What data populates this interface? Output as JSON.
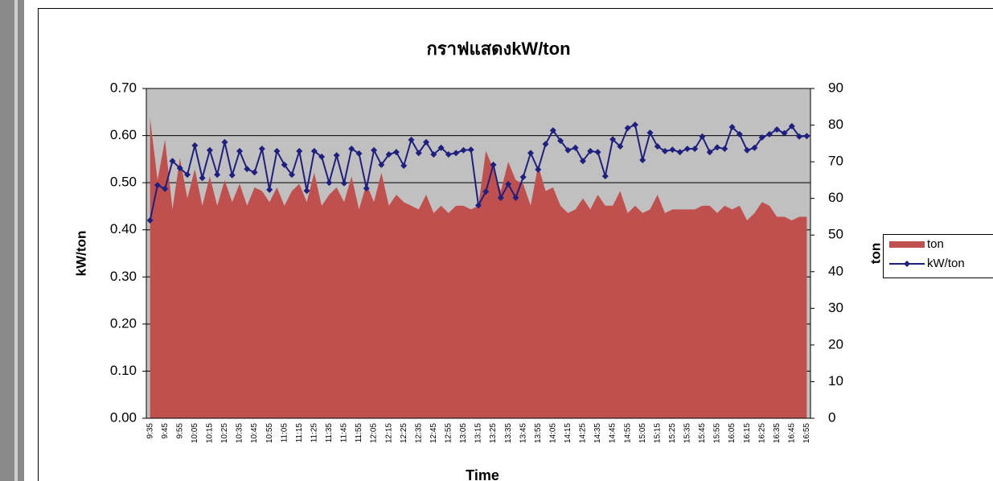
{
  "chart_data": {
    "type": "combo",
    "title": "กราฟแสดงkW/ton",
    "x_label": "Time",
    "y_label": "kW/ton",
    "y2_label": "ton",
    "categories": [
      "9:35",
      null,
      "9:45",
      null,
      "9:55",
      null,
      "10:05",
      null,
      "10:15",
      null,
      "10:25",
      null,
      "10:35",
      null,
      "10:45",
      null,
      "10:55",
      null,
      "11:05",
      null,
      "11:15",
      null,
      "11:25",
      null,
      "11:35",
      null,
      "11:45",
      null,
      "11:55",
      null,
      "12:05",
      null,
      "12:15",
      null,
      "12:25",
      null,
      "12:35",
      null,
      "12:45",
      null,
      "12:55",
      null,
      "13:05",
      null,
      "13:15",
      null,
      "13:25",
      null,
      "13:35",
      null,
      "13:45",
      null,
      "13:55",
      null,
      "14:05",
      null,
      "14:15",
      null,
      "14:25",
      null,
      "14:35",
      null,
      "14:45",
      null,
      "14:55",
      null,
      "15:05",
      null,
      "15:15",
      null,
      "15:25",
      null,
      "15:35",
      null,
      "15:45",
      null,
      "15:55",
      null,
      "16:05",
      null,
      "16:15",
      null,
      "16:25",
      null,
      "16:35",
      null,
      "16:45",
      null,
      "16:55"
    ],
    "series": [
      {
        "name": "ton",
        "type": "area",
        "axis": "y2",
        "color": "#c0504d",
        "values": [
          82,
          65,
          76,
          57,
          71,
          60,
          68,
          58,
          66,
          58,
          65,
          59,
          64,
          58,
          63,
          62,
          59,
          63,
          58,
          62,
          64,
          59,
          67,
          58,
          61,
          63,
          59,
          66,
          57,
          64,
          59,
          67,
          58,
          61,
          59,
          58,
          57,
          61,
          56,
          58,
          56,
          58,
          58,
          57,
          58,
          73,
          68,
          62,
          70,
          65,
          64,
          58,
          69,
          62,
          63,
          58,
          56,
          57,
          60,
          57,
          61,
          58,
          58,
          62,
          56,
          58,
          56,
          57,
          61,
          56,
          57,
          57,
          57,
          57,
          58,
          58,
          56,
          58,
          57,
          58,
          54,
          56,
          59,
          58,
          55,
          55,
          54,
          55,
          55
        ]
      },
      {
        "name": "kW/ton",
        "type": "line",
        "axis": "y",
        "color": "#1f1f80",
        "values": [
          0.42,
          0.495,
          0.487,
          0.546,
          0.531,
          0.517,
          0.579,
          0.51,
          0.569,
          0.517,
          0.586,
          0.516,
          0.567,
          0.529,
          0.522,
          0.572,
          0.485,
          0.567,
          0.538,
          0.517,
          0.567,
          0.483,
          0.567,
          0.555,
          0.5,
          0.558,
          0.499,
          0.572,
          0.562,
          0.488,
          0.569,
          0.538,
          0.56,
          0.565,
          0.536,
          0.591,
          0.563,
          0.586,
          0.56,
          0.574,
          0.56,
          0.563,
          0.569,
          0.57,
          0.452,
          0.481,
          0.538,
          0.468,
          0.497,
          0.468,
          0.512,
          0.563,
          0.528,
          0.582,
          0.611,
          0.589,
          0.569,
          0.574,
          0.546,
          0.567,
          0.565,
          0.514,
          0.592,
          0.577,
          0.616,
          0.623,
          0.548,
          0.606,
          0.577,
          0.567,
          0.57,
          0.565,
          0.572,
          0.572,
          0.598,
          0.565,
          0.575,
          0.572,
          0.618,
          0.603,
          0.569,
          0.574,
          0.596,
          0.603,
          0.613,
          0.605,
          0.62,
          0.598,
          0.599
        ]
      }
    ],
    "ylim": [
      0,
      0.7
    ],
    "yticks": [
      {
        "value": 0,
        "label": "0.00"
      },
      {
        "value": 0.1,
        "label": "0.10"
      },
      {
        "value": 0.2,
        "label": "0.20"
      },
      {
        "value": 0.3,
        "label": "0.30"
      },
      {
        "value": 0.4,
        "label": "0.40"
      },
      {
        "value": 0.5,
        "label": "0.50"
      },
      {
        "value": 0.6,
        "label": "0.60"
      },
      {
        "value": 0.7,
        "label": "0.70"
      }
    ],
    "y2lim": [
      0,
      90
    ],
    "y2ticks": [
      0,
      10,
      20,
      30,
      40,
      50,
      60,
      70,
      80,
      90
    ],
    "grid": true,
    "legend": "right"
  }
}
